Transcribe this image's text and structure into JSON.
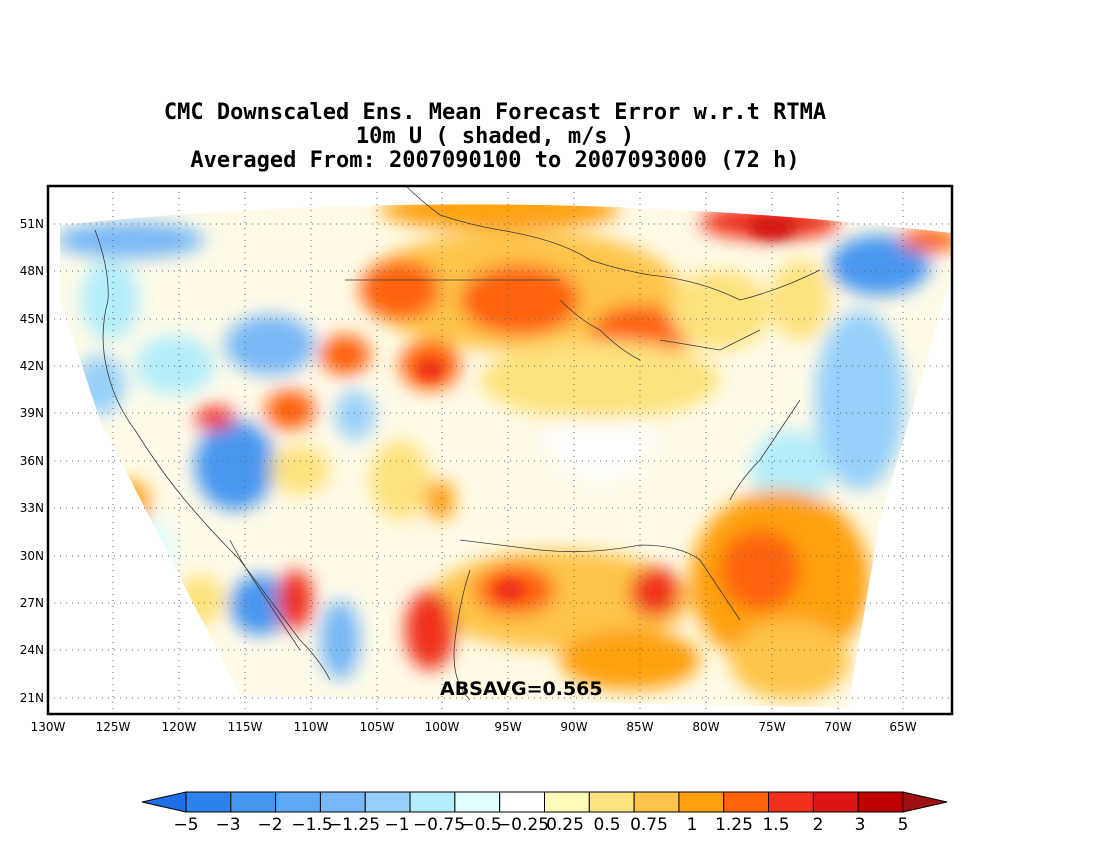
{
  "title": {
    "line1": "CMC Downscaled Ens. Mean Forecast Error w.r.t RTMA",
    "line2": "10m U ( shaded, m/s )",
    "line3": "Averaged From: 2007090100 to 2007093000 (72 h)"
  },
  "map": {
    "lon_labels": [
      "130W",
      "125W",
      "120W",
      "115W",
      "110W",
      "105W",
      "100W",
      "95W",
      "90W",
      "85W",
      "80W",
      "75W",
      "70W",
      "65W"
    ],
    "lat_labels": [
      "51N",
      "48N",
      "45N",
      "42N",
      "39N",
      "36N",
      "33N",
      "30N",
      "27N",
      "24N",
      "21N"
    ],
    "annotation": "ABSAVG=0.565",
    "gridlines": "dotted"
  },
  "colorbar": {
    "labels": [
      "−5",
      "−3",
      "−2",
      "−1.5",
      "−1.25",
      "−1",
      "−0.75",
      "−0.5",
      "−0.25",
      "0.25",
      "0.5",
      "0.75",
      "1",
      "1.25",
      "1.5",
      "2",
      "3",
      "5"
    ],
    "colors": [
      "#1e6ee8",
      "#2e82ee",
      "#4696f0",
      "#5ea8f4",
      "#78b8f6",
      "#96d0fa",
      "#b4eefa",
      "#e0fefe",
      "#ffffff",
      "#fefaba",
      "#fee27e",
      "#fec44a",
      "#fea00e",
      "#fe620a",
      "#f0301c",
      "#dc1616",
      "#be0000",
      "#a01010"
    ]
  }
}
